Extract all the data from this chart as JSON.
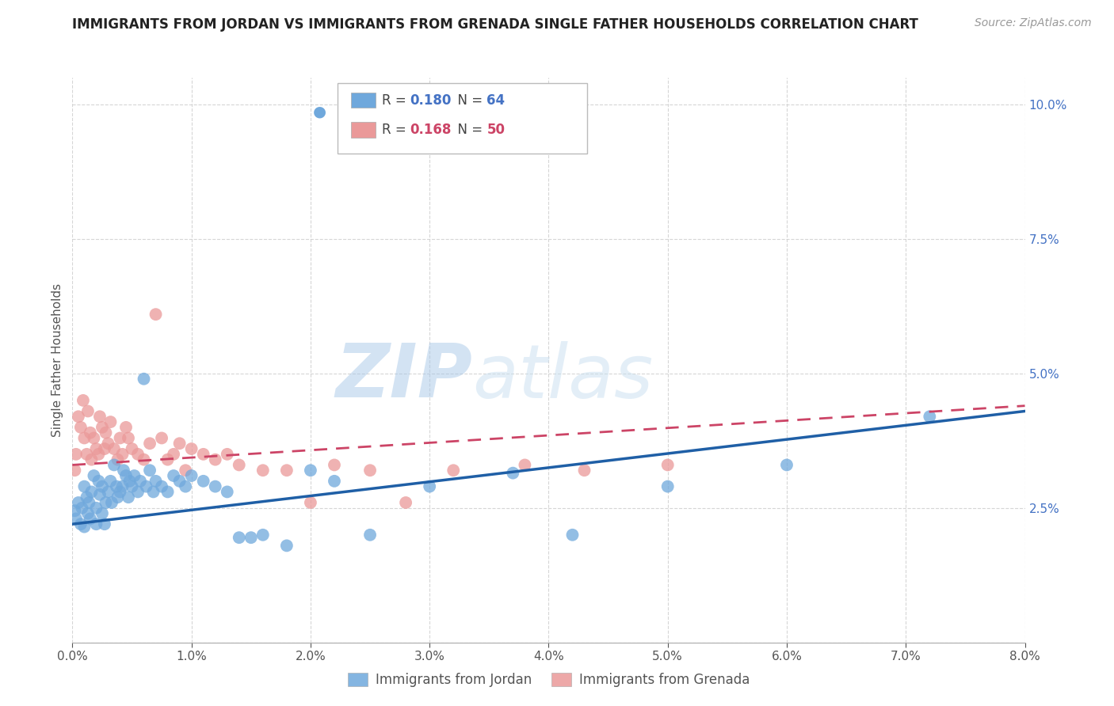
{
  "title": "IMMIGRANTS FROM JORDAN VS IMMIGRANTS FROM GRENADA SINGLE FATHER HOUSEHOLDS CORRELATION CHART",
  "source": "Source: ZipAtlas.com",
  "ylabel": "Single Father Households",
  "jordan_color": "#6fa8dc",
  "grenada_color": "#ea9999",
  "jordan_line_color": "#1f5fa6",
  "grenada_line_color": "#cc4466",
  "watermark_zip": "ZIP",
  "watermark_atlas": "atlas",
  "legend_jordan_r": "0.180",
  "legend_jordan_n": "64",
  "legend_grenada_r": "0.168",
  "legend_grenada_n": "50",
  "jordan_points_x": [
    0.0002,
    0.0003,
    0.0005,
    0.0007,
    0.0008,
    0.001,
    0.001,
    0.0012,
    0.0013,
    0.0014,
    0.0015,
    0.0016,
    0.0018,
    0.002,
    0.002,
    0.0022,
    0.0023,
    0.0025,
    0.0025,
    0.0027,
    0.0028,
    0.003,
    0.0032,
    0.0033,
    0.0035,
    0.0037,
    0.0038,
    0.004,
    0.0042,
    0.0043,
    0.0045,
    0.0047,
    0.0048,
    0.005,
    0.0052,
    0.0055,
    0.0057,
    0.006,
    0.0062,
    0.0065,
    0.0068,
    0.007,
    0.0075,
    0.008,
    0.0085,
    0.009,
    0.0095,
    0.01,
    0.011,
    0.012,
    0.013,
    0.014,
    0.015,
    0.016,
    0.018,
    0.02,
    0.022,
    0.025,
    0.03,
    0.037,
    0.042,
    0.05,
    0.06,
    0.072
  ],
  "jordan_points_y": [
    0.0245,
    0.023,
    0.026,
    0.022,
    0.025,
    0.029,
    0.0215,
    0.027,
    0.024,
    0.026,
    0.023,
    0.028,
    0.031,
    0.025,
    0.022,
    0.03,
    0.0275,
    0.024,
    0.029,
    0.022,
    0.026,
    0.028,
    0.03,
    0.026,
    0.033,
    0.029,
    0.027,
    0.028,
    0.029,
    0.032,
    0.031,
    0.027,
    0.03,
    0.029,
    0.031,
    0.028,
    0.03,
    0.049,
    0.029,
    0.032,
    0.028,
    0.03,
    0.029,
    0.028,
    0.031,
    0.03,
    0.029,
    0.031,
    0.03,
    0.029,
    0.028,
    0.0195,
    0.0195,
    0.02,
    0.018,
    0.032,
    0.03,
    0.02,
    0.029,
    0.0315,
    0.02,
    0.029,
    0.033,
    0.042
  ],
  "grenada_points_x": [
    0.0002,
    0.0003,
    0.0005,
    0.0007,
    0.0009,
    0.001,
    0.0012,
    0.0013,
    0.0015,
    0.0016,
    0.0018,
    0.002,
    0.0022,
    0.0023,
    0.0025,
    0.0027,
    0.0028,
    0.003,
    0.0032,
    0.0035,
    0.0038,
    0.004,
    0.0042,
    0.0045,
    0.0047,
    0.005,
    0.0055,
    0.006,
    0.0065,
    0.007,
    0.0075,
    0.008,
    0.0085,
    0.009,
    0.0095,
    0.01,
    0.011,
    0.012,
    0.013,
    0.014,
    0.016,
    0.018,
    0.02,
    0.022,
    0.025,
    0.028,
    0.032,
    0.038,
    0.043,
    0.05
  ],
  "grenada_points_y": [
    0.032,
    0.035,
    0.042,
    0.04,
    0.045,
    0.038,
    0.035,
    0.043,
    0.039,
    0.034,
    0.038,
    0.036,
    0.035,
    0.042,
    0.04,
    0.036,
    0.039,
    0.037,
    0.041,
    0.036,
    0.034,
    0.038,
    0.035,
    0.04,
    0.038,
    0.036,
    0.035,
    0.034,
    0.037,
    0.061,
    0.038,
    0.034,
    0.035,
    0.037,
    0.032,
    0.036,
    0.035,
    0.034,
    0.035,
    0.033,
    0.032,
    0.032,
    0.026,
    0.033,
    0.032,
    0.026,
    0.032,
    0.033,
    0.032,
    0.033
  ],
  "xlim": [
    0.0,
    0.08
  ],
  "ylim": [
    0.0,
    0.105
  ],
  "xtick_vals": [
    0.0,
    0.01,
    0.02,
    0.03,
    0.04,
    0.05,
    0.06,
    0.07,
    0.08
  ],
  "xtick_labels": [
    "0.0%",
    "1.0%",
    "2.0%",
    "3.0%",
    "4.0%",
    "5.0%",
    "6.0%",
    "7.0%",
    "8.0%"
  ],
  "ytick_vals": [
    0.0,
    0.025,
    0.05,
    0.075,
    0.1
  ],
  "ytick_labels": [
    "",
    "2.5%",
    "5.0%",
    "7.5%",
    "10.0%"
  ],
  "background_color": "#ffffff",
  "grid_color": "#cccccc",
  "title_fontsize": 12,
  "axis_label_fontsize": 11,
  "tick_fontsize": 11,
  "source_fontsize": 10
}
